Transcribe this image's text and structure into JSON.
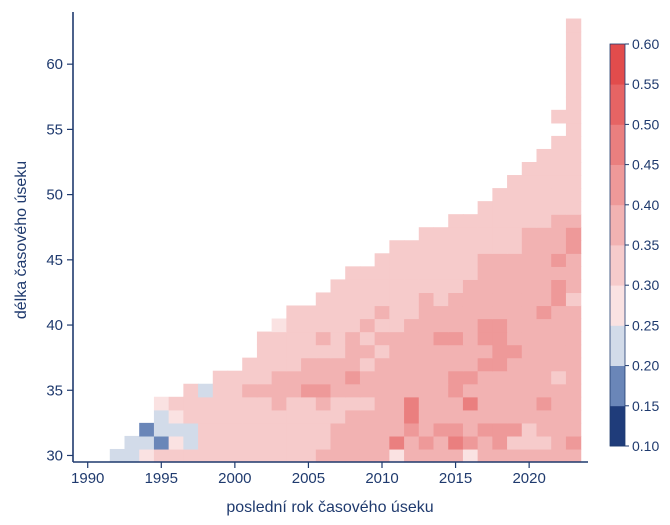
{
  "chart_data": {
    "type": "heatmap",
    "xlabel": "poslední rok časového úseku",
    "ylabel": "délka časového úseku",
    "xlim": [
      1989,
      2024
    ],
    "ylim": [
      29.5,
      64
    ],
    "xticks": [
      1990,
      1995,
      2000,
      2005,
      2010,
      2015,
      2020
    ],
    "yticks": [
      30,
      35,
      40,
      45,
      50,
      55,
      60
    ],
    "colorbar": {
      "bounds": [
        0.1,
        0.15,
        0.2,
        0.25,
        0.3,
        0.35,
        0.4,
        0.45,
        0.5,
        0.55,
        0.6
      ],
      "labels": [
        "0.10",
        "0.15",
        "0.20",
        "0.25",
        "0.30",
        "0.35",
        "0.40",
        "0.45",
        "0.50",
        "0.55",
        "0.60"
      ],
      "colors": [
        "#1f3c7a",
        "#6a86b8",
        "#d2dbe9",
        "#fae2e2",
        "#f6cbcb",
        "#f2b2b2",
        "#ee9999",
        "#ea7f7f",
        "#e66464",
        "#e24c4c",
        "#de3535"
      ]
    },
    "x_start": 1990,
    "x_end": 2023,
    "y_start": 30,
    "rows": [
      "22344444444444555553555535555555",
      "2213244444444455557565765644456",
      "122244444444455555656656664555",
      "23444444444445555755555555555",
      "34444444544544455755575555655",
      "424455556655555555655555555",
      "4444555556555555665555545",
      "44445555455555556655555",
      "4444445545555555665555",
      "4444545455556656655555",
      "344444544555556655555",
      "44444454455555555655",
      "444444454555555564",
      "44444444455555565",
      "4444444445555555",
      "44444445555565",
      "4444444445556",
      "44444445556",
      "444444455",
      "4444444",
      "444444",
      "44444",
      "4444",
      "444",
      "44",
      "4",
      "44",
      "4",
      "4",
      "4",
      "4",
      "4",
      "4",
      "4"
    ]
  }
}
